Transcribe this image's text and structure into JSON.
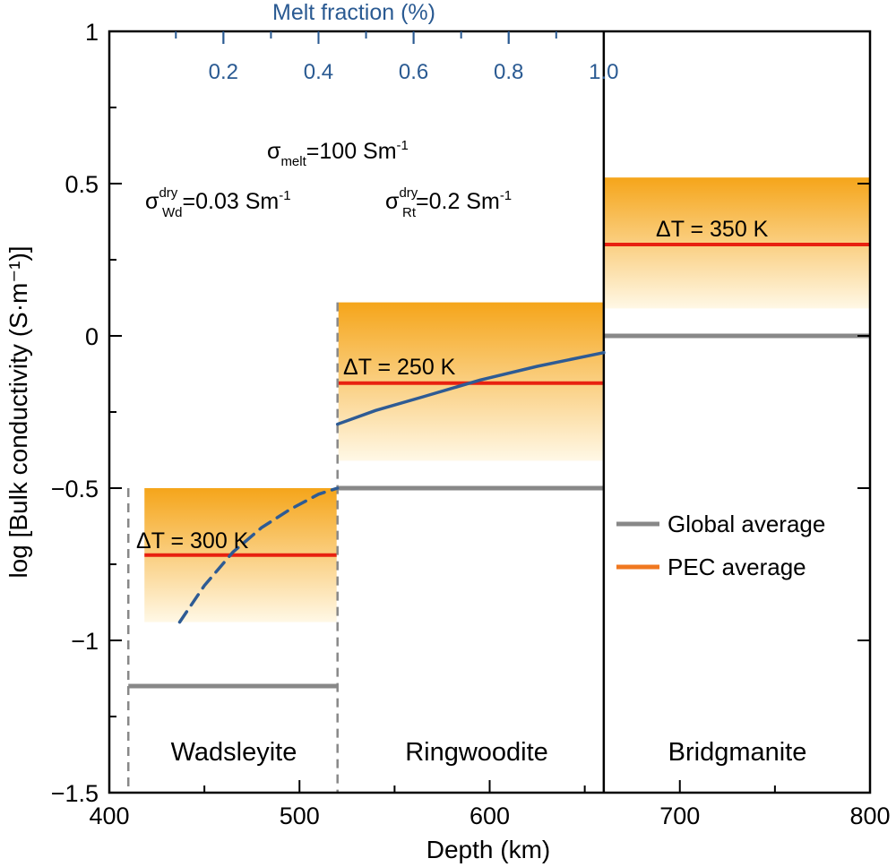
{
  "chart_data": {
    "type": "step-band",
    "xlabel": "Depth (km)",
    "ylabel": "log [Bulk conductivity (S·m⁻¹)]",
    "xlim": [
      400,
      800
    ],
    "ylim": [
      -1.5,
      1
    ],
    "x_ticks": [
      400,
      500,
      600,
      700,
      800
    ],
    "x_tick_labels": [
      "400",
      "500",
      "600",
      "700",
      "800"
    ],
    "y_ticks": [
      1,
      0.5,
      0,
      -0.5,
      -1,
      -1.5
    ],
    "y_tick_labels": [
      "1",
      "0.5",
      "0",
      "−0.5",
      "−1",
      "−1.5"
    ],
    "top_axis": {
      "label": "Melt fraction (%)",
      "range_x": [
        410,
        660
      ],
      "ticks": [
        0.2,
        0.4,
        0.6,
        0.8,
        1.0
      ],
      "tick_labels": [
        "0.2",
        "0.4",
        "0.6",
        "0.8",
        "1.0"
      ]
    },
    "boundaries": [
      410,
      520,
      660
    ],
    "annotations": {
      "sigma_melt": {
        "symbol": "σ",
        "sub": "melt",
        "value": "=100 Sm",
        "exp": "-1"
      },
      "sigma_wd": {
        "symbol": "σ",
        "sup": "dry",
        "sub": "Wd",
        "value": "=0.03 Sm",
        "exp": "-1"
      },
      "sigma_rt": {
        "symbol": "σ",
        "sup": "dry",
        "sub": "Rt",
        "value": "=0.2 Sm",
        "exp": "-1"
      }
    },
    "regions": [
      {
        "name": "Wadsleyite",
        "x": [
          410,
          520
        ],
        "band": [
          -0.94,
          -0.5
        ],
        "pec_average": -0.72,
        "global_average": -1.15,
        "delta_t": "ΔT = 300 K"
      },
      {
        "name": "Ringwoodite",
        "x": [
          520,
          660
        ],
        "band": [
          -0.41,
          0.11
        ],
        "pec_average": -0.155,
        "global_average": -0.5,
        "delta_t": "ΔT = 250 K"
      },
      {
        "name": "Bridgmanite",
        "x": [
          660,
          800
        ],
        "band": [
          0.09,
          0.52
        ],
        "pec_average": 0.3,
        "global_average": 0.0,
        "delta_t": "ΔT = 350 K"
      }
    ],
    "melt_curves": [
      {
        "style": "dashed",
        "color": "#2e5b94",
        "x": [
          437,
          450,
          465,
          480,
          495,
          510,
          520
        ],
        "y": [
          -0.94,
          -0.82,
          -0.71,
          -0.63,
          -0.57,
          -0.52,
          -0.5
        ]
      },
      {
        "style": "solid",
        "color": "#2e5b94",
        "x": [
          520,
          540,
          565,
          595,
          625,
          660
        ],
        "y": [
          -0.29,
          -0.245,
          -0.2,
          -0.145,
          -0.1,
          -0.055
        ]
      }
    ],
    "legend": {
      "placement": "right",
      "items": [
        {
          "label": "Global average",
          "color": "#888888"
        },
        {
          "label": "PEC average",
          "color": "#f07820"
        }
      ]
    },
    "colors": {
      "band_top": "#f5a51a",
      "band_bottom": "#fff8e6",
      "pec_line": "#e82010",
      "global_line": "#888888",
      "axis": "#000000"
    }
  }
}
